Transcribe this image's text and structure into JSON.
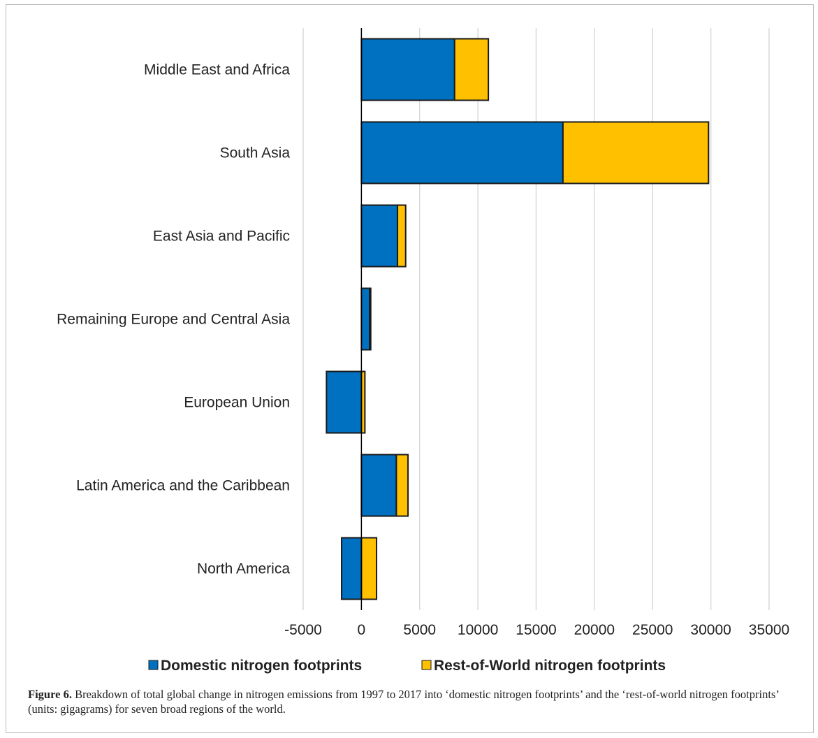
{
  "colors": {
    "domestic": "#0070C0",
    "rest_of_world": "#FFC000",
    "grid": "#d9d9d9",
    "axis": "#000000"
  },
  "chart_data": {
    "type": "bar",
    "orientation": "horizontal",
    "stacked": true,
    "categories": [
      "Middle East and Africa",
      "South Asia",
      "East Asia and Pacific",
      "Remaining Europe and Central Asia",
      "European Union",
      "Latin America and the Caribbean",
      "North America"
    ],
    "series": [
      {
        "name": "Domestic nitrogen footprints",
        "color": "#0070C0",
        "values": [
          8000,
          17300,
          3100,
          700,
          -3000,
          3000,
          -1700
        ]
      },
      {
        "name": "Rest-of-World nitrogen footprints",
        "color": "#FFC000",
        "values": [
          2900,
          12500,
          700,
          100,
          300,
          1000,
          1300
        ]
      }
    ],
    "xlim": [
      -5000,
      35000
    ],
    "xticks": [
      -5000,
      0,
      5000,
      10000,
      15000,
      20000,
      25000,
      30000,
      35000
    ],
    "xtick_labels": [
      "-5000",
      "0",
      "5000",
      "10000",
      "15000",
      "20000",
      "25000",
      "30000",
      "35000"
    ],
    "grid": "vertical",
    "legend_position": "bottom"
  },
  "caption": {
    "label": "Figure 6.",
    "text": " Breakdown of total global change in nitrogen emissions from 1997 to 2017 into ‘domestic nitrogen footprints’ and the ‘rest-of-world nitrogen footprints’ (units: gigagrams) for seven broad regions of the world."
  }
}
